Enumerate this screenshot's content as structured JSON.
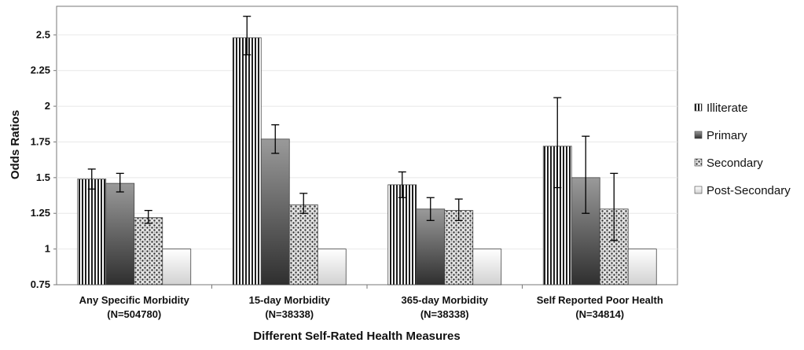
{
  "chart_data": {
    "type": "bar",
    "title": "",
    "xlabel": "Different Self-Rated Health Measures",
    "ylabel": "Odds Ratios",
    "ylim": [
      0.75,
      2.7
    ],
    "yticks": [
      "0.75",
      "1",
      "1.25",
      "1.5",
      "1.75",
      "2",
      "2.25",
      "2.5"
    ],
    "categories": [
      [
        "Any Specific Morbidity",
        "(N=504780)"
      ],
      [
        "15-day Morbidity",
        "(N=38338)"
      ],
      [
        "365-day Morbidity",
        "(N=38338)"
      ],
      [
        "Self Reported Poor Health",
        "(N=34814)"
      ]
    ],
    "series": [
      {
        "name": "Illiterate",
        "pattern": "vstripes",
        "values": [
          1.49,
          2.48,
          1.45,
          1.72
        ],
        "err_low": [
          1.42,
          2.36,
          1.36,
          1.43
        ],
        "err_high": [
          1.56,
          2.63,
          1.54,
          2.06
        ]
      },
      {
        "name": "Primary",
        "pattern": "gradient",
        "values": [
          1.46,
          1.77,
          1.28,
          1.5
        ],
        "err_low": [
          1.4,
          1.67,
          1.2,
          1.25
        ],
        "err_high": [
          1.53,
          1.87,
          1.36,
          1.79
        ]
      },
      {
        "name": "Secondary",
        "pattern": "dots",
        "values": [
          1.22,
          1.31,
          1.27,
          1.28
        ],
        "err_low": [
          1.18,
          1.25,
          1.2,
          1.06
        ],
        "err_high": [
          1.27,
          1.39,
          1.35,
          1.53
        ]
      },
      {
        "name": "Post-Secondary",
        "pattern": "light",
        "values": [
          1.0,
          1.0,
          1.0,
          1.0
        ]
      }
    ],
    "legend_position": "right",
    "grid": true,
    "colors": {
      "gridline": "#e8e8e8",
      "axis": "#777777",
      "bar_outline": "#444444"
    }
  }
}
